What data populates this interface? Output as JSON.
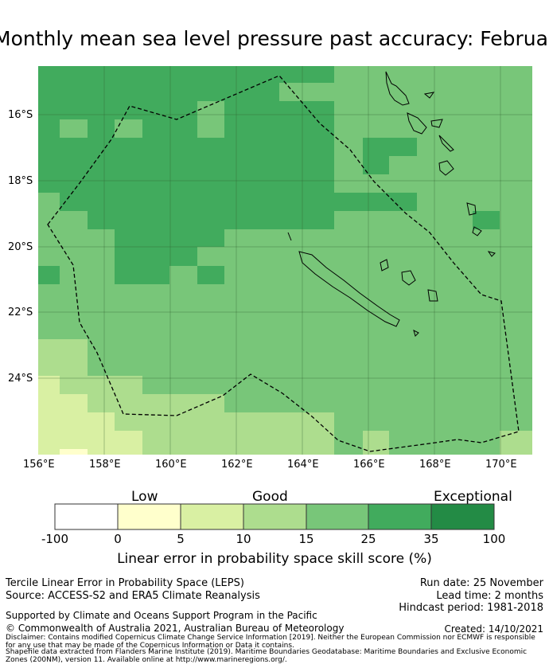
{
  "title": "Monthly mean sea level pressure past accuracy: February - April",
  "map": {
    "lat_labels": [
      "16°S",
      "18°S",
      "20°S",
      "22°S",
      "24°S"
    ],
    "lon_labels": [
      "156°E",
      "158°E",
      "160°E",
      "162°E",
      "164°E",
      "166°E",
      "168°E",
      "170°E"
    ],
    "colors": {
      "exceptional": "#238b45",
      "c25_35": "#41ab5d",
      "c15_25": "#78c679",
      "c10_15": "#addd8e",
      "c5_10": "#d9f0a3",
      "c0_5": "#ffffcc",
      "low": "#ffffff"
    }
  },
  "colorbar": {
    "categories": [
      "Low",
      "Good",
      "Exceptional"
    ],
    "ticks": [
      "-100",
      "0",
      "5",
      "10",
      "15",
      "25",
      "35",
      "100"
    ],
    "label": "Linear error in probability space skill score (%)"
  },
  "footer": {
    "line1": "Tercile Linear Error in Probability Space (LEPS)",
    "line2": "Source: ACCESS-S2 and ERA5 Climate Reanalysis",
    "run_date": "Run date: 25 November",
    "lead_time": "Lead time: 2 months",
    "hindcast": "Hindcast period: 1981-2018",
    "support": "Supported by Climate and Oceans Support Program in the Pacific",
    "copyright": "© Commonwealth of Australia 2021, Australian Bureau of Meteorology",
    "created": "Created: 14/10/2021",
    "disclaimer": "Disclaimer: Contains modified Copernicus Climate Change Service Information [2019]. Neither the European Commission nor ECMWF is responsible for any use that may be made of the Copernicus Information or Data it contains.",
    "shapefile": "Shapefile data extracted from Flanders Marine Institute (2019). Maritime Boundaries Geodatabase: Maritime Boundaries and Exclusive Economic Zones (200NM), version 11. Available online at http://www.marineregions.org/."
  }
}
